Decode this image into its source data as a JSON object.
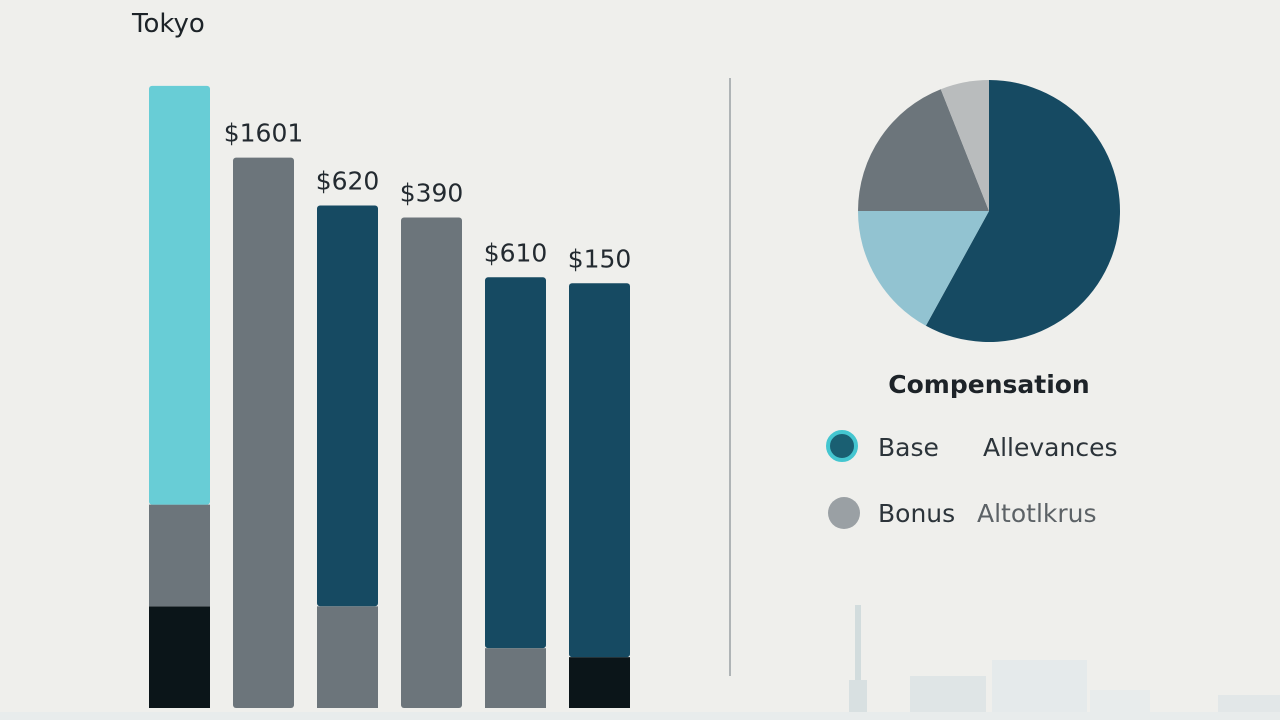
{
  "colors": {
    "background": "#efefec",
    "cyan": "#68cdd6",
    "gray": "#6c757b",
    "navy": "#164a62",
    "black": "#0b1519",
    "light_blue": "#92c3d1",
    "silver": "#b9bcbd",
    "divider": "#9aa0a4",
    "skyline": "#dfe5e6"
  },
  "chart_data": [
    {
      "type": "bar",
      "title": "Tokyo",
      "stacked": true,
      "ylim": [
        0,
        1100
      ],
      "bars": [
        {
          "label": "",
          "segments": [
            {
              "value": 170,
              "color": "#0b1519"
            },
            {
              "value": 170,
              "color": "#6c757b"
            },
            {
              "value": 700,
              "color": "#68cdd6"
            }
          ]
        },
        {
          "label": "$1601",
          "segments": [
            {
              "value": 920,
              "color": "#6c757b"
            }
          ]
        },
        {
          "label": "$620",
          "segments": [
            {
              "value": 170,
              "color": "#6c757b"
            },
            {
              "value": 670,
              "color": "#164a62"
            }
          ]
        },
        {
          "label": "$390",
          "segments": [
            {
              "value": 820,
              "color": "#6c757b"
            }
          ]
        },
        {
          "label": "$610",
          "segments": [
            {
              "value": 100,
              "color": "#6c757b"
            },
            {
              "value": 620,
              "color": "#164a62"
            }
          ]
        },
        {
          "label": "$150",
          "segments": [
            {
              "value": 85,
              "color": "#0b1519"
            },
            {
              "value": 625,
              "color": "#164a62"
            }
          ]
        }
      ]
    },
    {
      "type": "pie",
      "title": "Compensation",
      "slices": [
        {
          "value": 58,
          "color": "#164a62"
        },
        {
          "value": 17,
          "color": "#92c3d1"
        },
        {
          "value": 19,
          "color": "#6c757b"
        },
        {
          "value": 6,
          "color": "#b9bcbd"
        }
      ],
      "legend": [
        {
          "label": "Base",
          "color": "#1a5f72",
          "ring": "#44c6d0"
        },
        {
          "label": "Allevances",
          "color": ""
        },
        {
          "label": "Bonus",
          "color": "#9aa0a4",
          "ring": ""
        },
        {
          "label": "Altotlkrus",
          "color": ""
        }
      ]
    }
  ]
}
